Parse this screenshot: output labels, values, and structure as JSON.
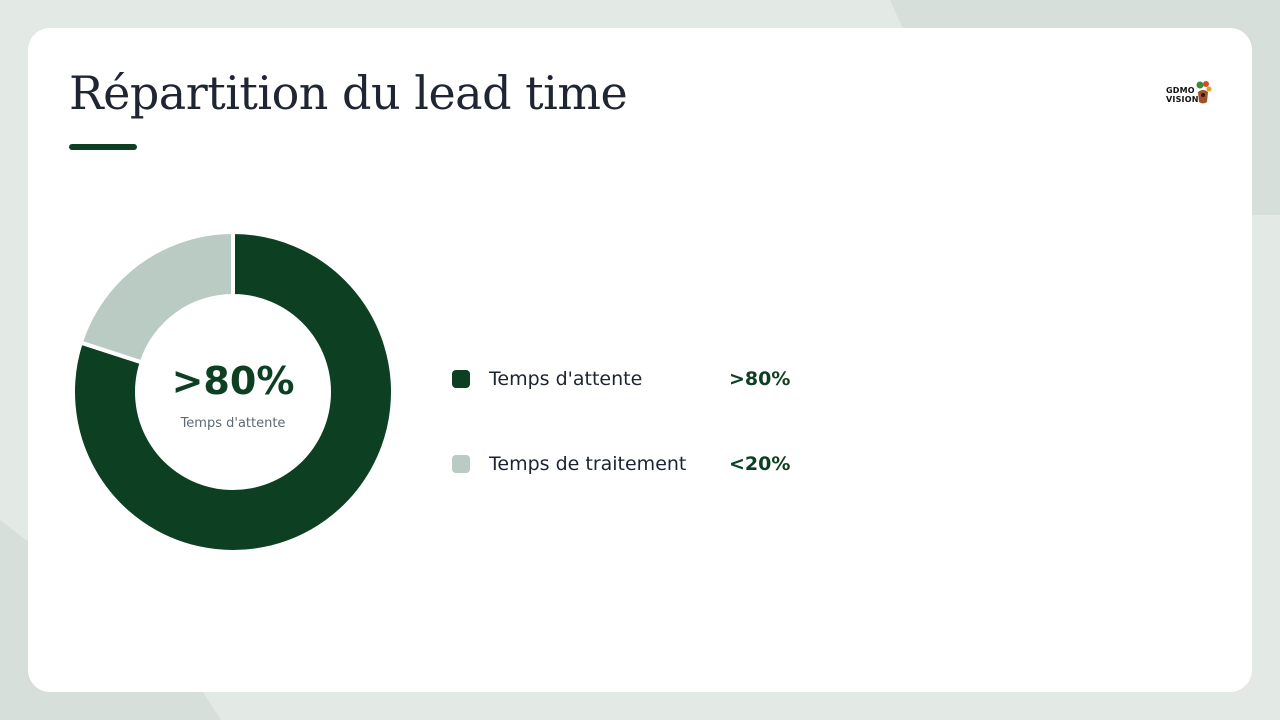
{
  "slide": {
    "title": "Répartition du lead time"
  },
  "logo": {
    "line1": "GDMO",
    "line2": "VISION"
  },
  "colors": {
    "primary": "#0d4023",
    "secondary": "#b9cbc2",
    "title_text": "#1f2533",
    "background": "#e3e9e5"
  },
  "chart_data": {
    "type": "pie",
    "donut": true,
    "center_value": ">80%",
    "center_label": "Temps d'attente",
    "slices": [
      {
        "name": "Temps d'attente",
        "value": 80,
        "display": ">80%",
        "color": "#0d4023"
      },
      {
        "name": "Temps de traitement",
        "value": 20,
        "display": "<20%",
        "color": "#b9cbc2"
      }
    ],
    "legend_position": "right"
  }
}
